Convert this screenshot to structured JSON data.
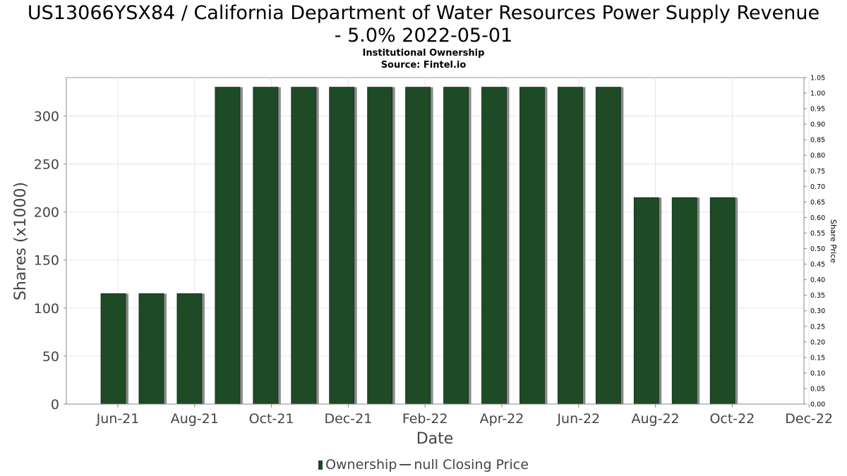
{
  "chart_data": {
    "type": "bar",
    "title_line1": "US13066YSX84 / California Department of Water Resources Power Supply Revenue",
    "title_line2": "- 5.0% 2022-05-01",
    "subtitle": "Institutional Ownership",
    "source": "Source: Fintel.io",
    "xlabel": "Date",
    "ylabel": "Shares (x1000)",
    "y2label": "Share Price",
    "ylim": [
      0,
      340
    ],
    "y2lim": [
      0,
      1.05
    ],
    "yticks": [
      "0",
      "50",
      "100",
      "150",
      "200",
      "250",
      "300"
    ],
    "y2ticks": [
      "0.00",
      "0.05",
      "0.10",
      "0.15",
      "0.20",
      "0.25",
      "0.30",
      "0.35",
      "0.40",
      "0.45",
      "0.50",
      "0.55",
      "0.60",
      "0.65",
      "0.70",
      "0.75",
      "0.80",
      "0.85",
      "0.90",
      "0.95",
      "1.00",
      "1.05"
    ],
    "xticks": [
      "Jun-21",
      "Aug-21",
      "Oct-21",
      "Dec-21",
      "Feb-22",
      "Apr-22",
      "Jun-22",
      "Aug-22",
      "Oct-22",
      "Dec-22"
    ],
    "grid": true,
    "legend_placement": "bottom",
    "colors": {
      "bar": "#1e4a26",
      "bar_shadow": "#8a8a8a"
    },
    "series": [
      {
        "name": "Ownership",
        "values": [
          115,
          115,
          115,
          330,
          330,
          330,
          330,
          330,
          330,
          330,
          330,
          330,
          330,
          330,
          215,
          215,
          215
        ]
      }
    ],
    "legend": [
      "Ownership",
      "null Closing Price"
    ]
  }
}
